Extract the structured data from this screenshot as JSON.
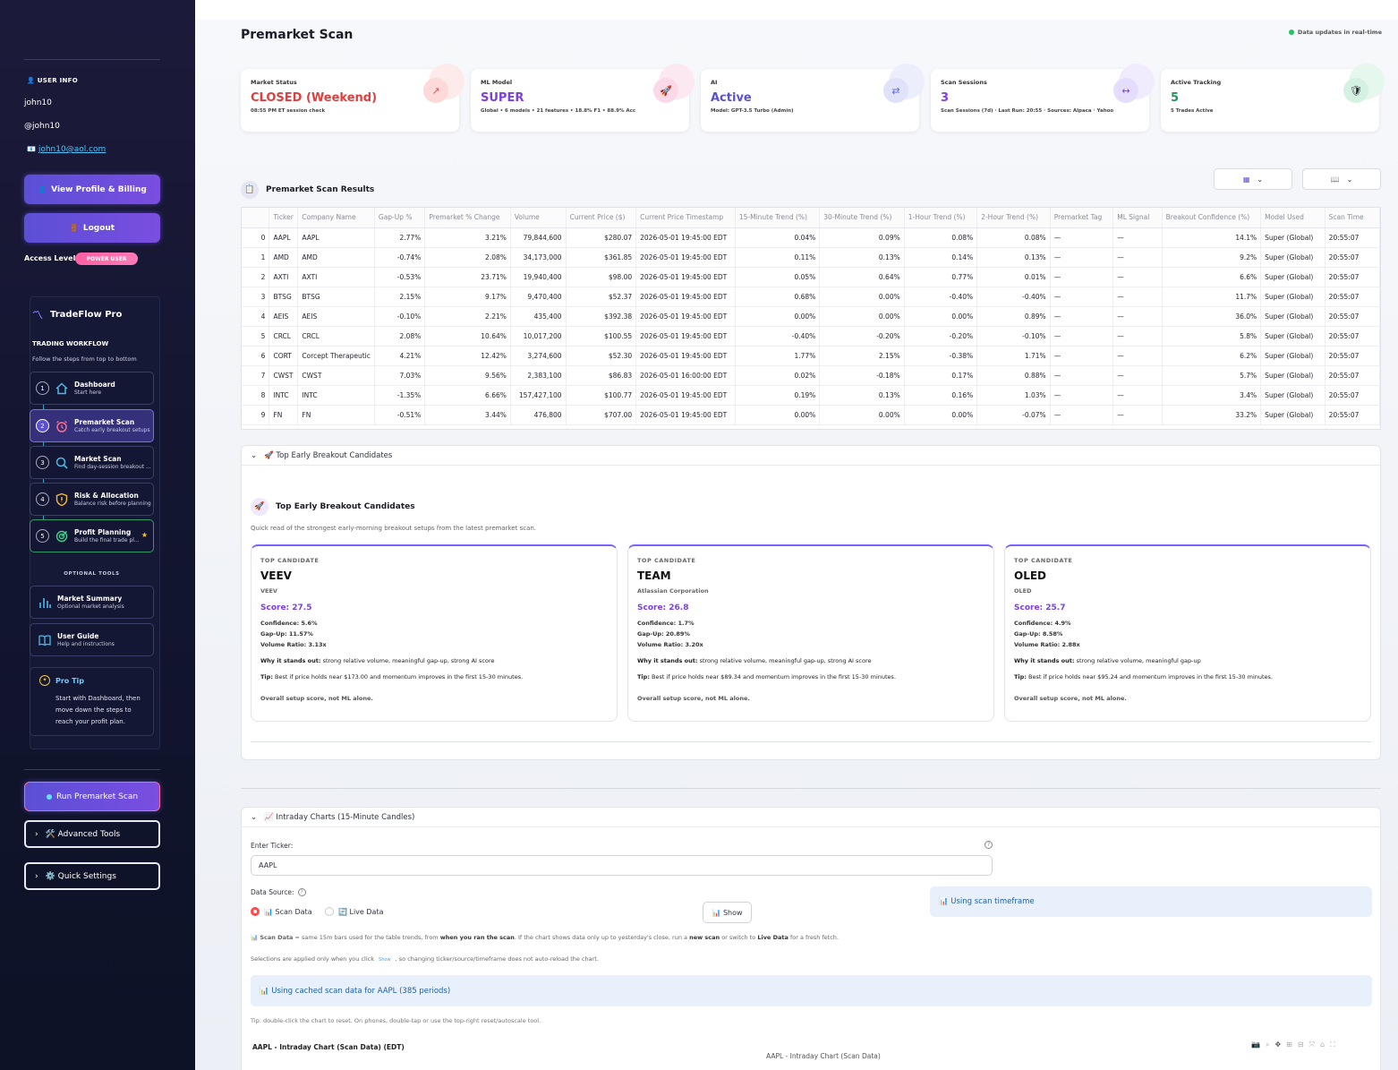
{
  "sidebar": {
    "user_info_title": "USER INFO",
    "name": "john10",
    "handle": "@john10",
    "email": "john10@aol.com",
    "profile_btn": "View Profile & Billing",
    "logout_btn": "Logout",
    "access_label": "Access Level:",
    "access_badge": "POWER USER",
    "app_name": "TradeFlow Pro",
    "workflow_title": "TRADING WORKFLOW",
    "workflow_sub": "Follow the steps from top to bottom",
    "steps": [
      {
        "num": "1",
        "title": "Dashboard",
        "sub": "Start here"
      },
      {
        "num": "2",
        "title": "Premarket Scan",
        "sub": "Catch early breakout setups"
      },
      {
        "num": "3",
        "title": "Market Scan",
        "sub": "Find day-session breakout ..."
      },
      {
        "num": "4",
        "title": "Risk & Allocation",
        "sub": "Balance risk before planning"
      },
      {
        "num": "5",
        "title": "Profit Planning",
        "sub": "Build the final trade pl..."
      }
    ],
    "optional_title": "OPTIONAL TOOLS",
    "tools": [
      {
        "title": "Market Summary",
        "sub": "Optional market analysis"
      },
      {
        "title": "User Guide",
        "sub": "Help and instructions"
      }
    ],
    "pro_tip_title": "Pro Tip",
    "pro_tip_text": "Start with Dashboard, then move down the steps to reach your profit plan.",
    "run_btn": "Run Premarket Scan",
    "advanced_btn": "🛠️ Advanced Tools",
    "quick_btn": "⚙️ Quick Settings"
  },
  "header": {
    "title": "Premarket Scan",
    "status": "Data updates in real-time"
  },
  "cards": [
    {
      "label": "Market Status",
      "value": "CLOSED (Weekend)",
      "sub": "08:55 PM ET session check",
      "color": "#e03e3e",
      "icon": "↗",
      "icon_bg": "#fde4e4"
    },
    {
      "label": "ML Model",
      "value": "SUPER",
      "sub": "Global • 6 models • 21 features • 18.8% F1 • 88.9% Acc",
      "color": "#7b3fe4",
      "icon": "🚀",
      "icon_bg": "#fbe3ef"
    },
    {
      "label": "AI",
      "value": "Active",
      "sub": "Model: GPT-3.5 Turbo (Admin)",
      "color": "#5b4fd6",
      "icon": "⇄",
      "icon_bg": "#e6e8fb"
    },
    {
      "label": "Scan Sessions",
      "value": "3",
      "sub": "Scan Sessions (7d) · Last Run: 20:55 · Sources: Alpaca · Yahoo",
      "color": "#7b3fe4",
      "icon": "↔",
      "icon_bg": "#ece6fb"
    },
    {
      "label": "Active Tracking",
      "value": "5",
      "sub": "5 Trades Active",
      "color": "#1b9a55",
      "icon": "🛡",
      "icon_bg": "#e1f5ea"
    }
  ],
  "results": {
    "title": "Premarket Scan Results",
    "columns": [
      "",
      "Ticker",
      "Company Name",
      "Gap-Up %",
      "Premarket % Change",
      "Volume",
      "Current Price ($)",
      "Current Price Timestamp",
      "15-Minute Trend (%)",
      "30-Minute Trend (%)",
      "1-Hour Trend (%)",
      "2-Hour Trend (%)",
      "Premarket Tag",
      "ML Signal",
      "Breakout Confidence (%)",
      "Model Used",
      "Scan Time"
    ],
    "rows": [
      [
        "0",
        "AAPL",
        "AAPL",
        "2.77%",
        "3.21%",
        "79,844,600",
        "$280.07",
        "2026-05-01 19:45:00 EDT",
        "0.04%",
        "0.09%",
        "0.08%",
        "0.08%",
        "—",
        "—",
        "14.1%",
        "Super (Global)",
        "20:55:07"
      ],
      [
        "1",
        "AMD",
        "AMD",
        "-0.74%",
        "2.08%",
        "34,173,000",
        "$361.85",
        "2026-05-01 19:45:00 EDT",
        "0.11%",
        "0.13%",
        "0.14%",
        "0.13%",
        "—",
        "—",
        "9.2%",
        "Super (Global)",
        "20:55:07"
      ],
      [
        "2",
        "AXTI",
        "AXTI",
        "-0.53%",
        "23.71%",
        "19,940,400",
        "$98.00",
        "2026-05-01 19:45:00 EDT",
        "0.05%",
        "0.64%",
        "0.77%",
        "0.01%",
        "—",
        "—",
        "6.6%",
        "Super (Global)",
        "20:55:07"
      ],
      [
        "3",
        "BTSG",
        "BTSG",
        "2.15%",
        "9.17%",
        "9,470,400",
        "$52.37",
        "2026-05-01 19:45:00 EDT",
        "0.68%",
        "0.00%",
        "-0.40%",
        "-0.40%",
        "—",
        "—",
        "11.7%",
        "Super (Global)",
        "20:55:07"
      ],
      [
        "4",
        "AEIS",
        "AEIS",
        "-0.10%",
        "2.21%",
        "435,400",
        "$392.38",
        "2026-05-01 19:45:00 EDT",
        "0.00%",
        "0.00%",
        "0.00%",
        "0.89%",
        "—",
        "—",
        "36.0%",
        "Super (Global)",
        "20:55:07"
      ],
      [
        "5",
        "CRCL",
        "CRCL",
        "2.08%",
        "10.64%",
        "10,017,200",
        "$100.55",
        "2026-05-01 19:45:00 EDT",
        "-0.40%",
        "-0.20%",
        "-0.20%",
        "-0.10%",
        "—",
        "—",
        "5.8%",
        "Super (Global)",
        "20:55:07"
      ],
      [
        "6",
        "CORT",
        "Corcept Therapeutic",
        "4.21%",
        "12.42%",
        "3,274,600",
        "$52.30",
        "2026-05-01 19:45:00 EDT",
        "1.77%",
        "2.15%",
        "-0.38%",
        "1.71%",
        "—",
        "—",
        "6.2%",
        "Super (Global)",
        "20:55:07"
      ],
      [
        "7",
        "CWST",
        "CWST",
        "7.03%",
        "9.56%",
        "2,383,100",
        "$86.83",
        "2026-05-01 16:00:00 EDT",
        "0.02%",
        "-0.18%",
        "0.17%",
        "0.88%",
        "—",
        "—",
        "5.7%",
        "Super (Global)",
        "20:55:07"
      ],
      [
        "8",
        "INTC",
        "INTC",
        "-1.35%",
        "6.66%",
        "157,427,100",
        "$100.77",
        "2026-05-01 19:45:00 EDT",
        "0.19%",
        "0.13%",
        "0.16%",
        "1.03%",
        "—",
        "—",
        "3.4%",
        "Super (Global)",
        "20:55:07"
      ],
      [
        "9",
        "FN",
        "FN",
        "-0.51%",
        "3.44%",
        "476,800",
        "$707.00",
        "2026-05-01 19:45:00 EDT",
        "0.00%",
        "0.00%",
        "0.00%",
        "-0.07%",
        "—",
        "—",
        "33.2%",
        "Super (Global)",
        "20:55:07"
      ]
    ]
  },
  "breakout": {
    "expander": "🚀 Top Early Breakout Candidates",
    "title": "Top Early Breakout Candidates",
    "subtitle": "Quick read of the strongest early-morning breakout setups from the latest premarket scan.",
    "candidates": [
      {
        "tag": "TOP CANDIDATE",
        "ticker": "VEEV",
        "name": "VEEV",
        "score": "Score: 27.5",
        "confidence": "Confidence: 5.6%",
        "gap": "Gap-Up: 11.57%",
        "volume": "Volume Ratio: 3.13x",
        "why_label": "Why it stands out:",
        "why": "strong relative volume, meaningful gap-up, strong AI score",
        "tip_label": "Tip:",
        "tip": "Best if price holds near $173.00 and momentum improves in the first 15-30 minutes.",
        "overall": "Overall setup score, not ML alone."
      },
      {
        "tag": "TOP CANDIDATE",
        "ticker": "TEAM",
        "name": "Atlassian Corporation",
        "score": "Score: 26.8",
        "confidence": "Confidence: 1.7%",
        "gap": "Gap-Up: 20.89%",
        "volume": "Volume Ratio: 3.20x",
        "why_label": "Why it stands out:",
        "why": "strong relative volume, meaningful gap-up, strong AI score",
        "tip_label": "Tip:",
        "tip": "Best if price holds near $89.34 and momentum improves in the first 15-30 minutes.",
        "overall": "Overall setup score, not ML alone."
      },
      {
        "tag": "TOP CANDIDATE",
        "ticker": "OLED",
        "name": "OLED",
        "score": "Score: 25.7",
        "confidence": "Confidence: 4.9%",
        "gap": "Gap-Up: 8.58%",
        "volume": "Volume Ratio: 2.88x",
        "why_label": "Why it stands out:",
        "why": "strong relative volume, meaningful gap-up",
        "tip_label": "Tip:",
        "tip": "Best if price holds near $95.24 and momentum improves in the first 15-30 minutes.",
        "overall": "Overall setup score, not ML alone."
      }
    ]
  },
  "charts": {
    "expander": "📈 Intraday Charts (15-Minute Candles)",
    "ticker_label": "Enter Ticker:",
    "ticker_value": "AAPL",
    "source_label": "Data Source:",
    "opt_scan": "📊 Scan Data",
    "opt_live": "🔄 Live Data",
    "show_btn": "📊 Show",
    "timeframe_info": "📊 Using scan timeframe",
    "note1_a": "📊 Scan Data",
    "note1_b": " = same 15m bars used for the table trends, from ",
    "note1_c": "when you ran the scan",
    "note1_d": ". If the chart shows data only up to yesterday's close, run a ",
    "note1_e": "new scan",
    "note1_f": " or switch to ",
    "note1_g": "Live Data",
    "note1_h": " for a fresh fetch.",
    "note2_a": "Selections are applied only when you click ",
    "note2_b": "Show",
    "note2_c": " , so changing ticker/source/timeframe does not auto-reload the chart.",
    "cached_info": "📊 Using cached scan data for AAPL (385 periods)",
    "tip": "Tip: double-click the chart to reset. On phones, double-tap or use the top-right reset/autoscale tool.",
    "chart_header": "AAPL - Intraday Chart (Scan Data) (EDT)",
    "chart_title": "AAPL - Intraday Chart (Scan Data)"
  }
}
